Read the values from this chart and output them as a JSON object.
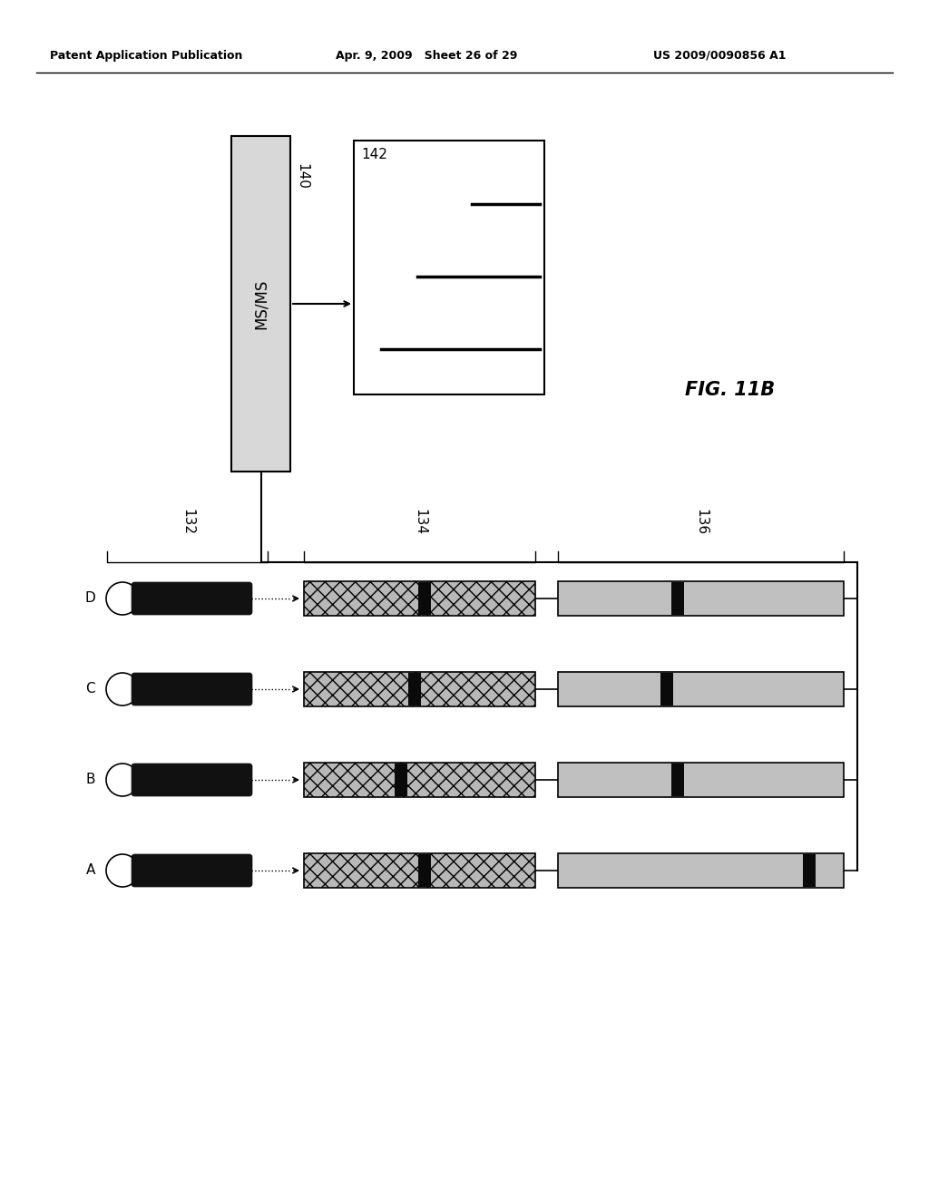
{
  "header_left": "Patent Application Publication",
  "header_mid": "Apr. 9, 2009   Sheet 26 of 29",
  "header_right": "US 2009/0090856 A1",
  "fig_label": "FIG. 11B",
  "box140_label": "140",
  "box140_text": "MS/MS",
  "box142_label": "142",
  "label_132": "132",
  "label_134": "134",
  "label_136": "136",
  "rows": [
    "D",
    "C",
    "B",
    "A"
  ],
  "bg_color": "#ffffff",
  "box140_fill": "#d8d8d8",
  "box142_fill": "#ffffff",
  "crosshatch_fill": "#b8b8b8",
  "light_gray_fill": "#c0c0c0",
  "dark_fill": "#111111",
  "line_color": "#000000",
  "ch_bar_offsets_134": [
    0.52,
    0.48,
    0.42,
    0.52
  ],
  "ch_bar_offsets_136": [
    0.42,
    0.38,
    0.42,
    0.88
  ]
}
